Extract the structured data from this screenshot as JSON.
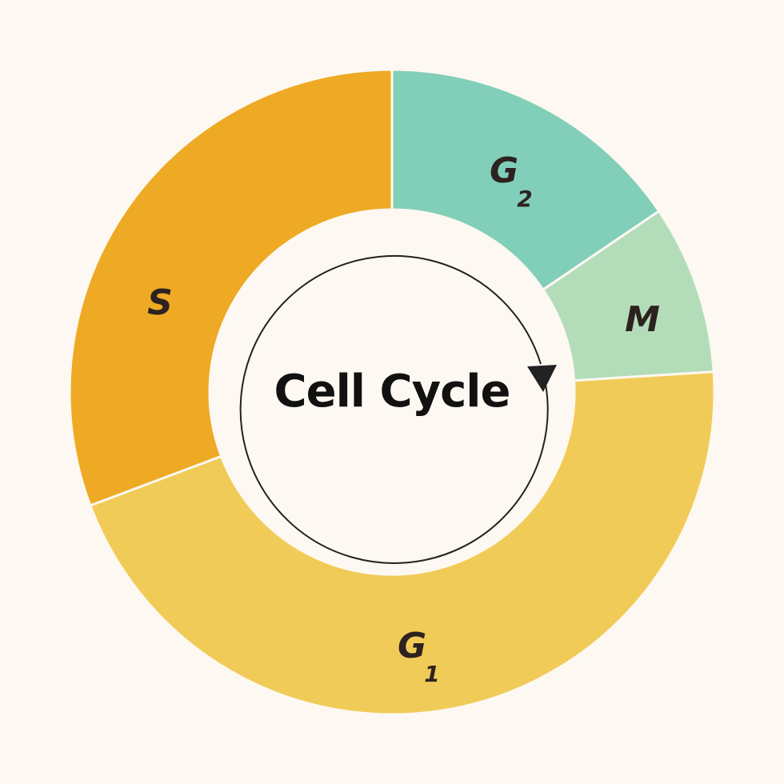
{
  "title": "Cell Cycle",
  "phases": [
    {
      "label": "G",
      "subscript": "2"
    },
    {
      "label": "M"
    },
    {
      "label": "G",
      "subscript": "1"
    },
    {
      "label": "S"
    }
  ]
}
